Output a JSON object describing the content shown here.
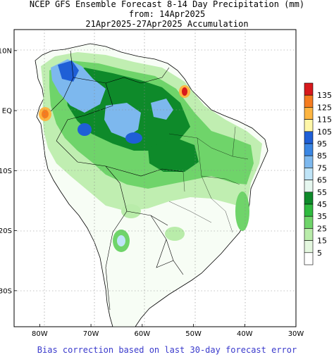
{
  "title": {
    "line1": "NCEP GFS Ensemble Forecast 8-14 Day Precipitation (mm)",
    "line2": "from: 14Apr2025",
    "line3": "21Apr2025-27Apr2025 Accumulation"
  },
  "footer": "Bias correction based on last 30-day forecast error",
  "axes": {
    "lat_labels": [
      "10N",
      "EQ",
      "10S",
      "20S",
      "30S"
    ],
    "lat_values": [
      10,
      0,
      -10,
      -20,
      -30
    ],
    "lon_labels": [
      "80W",
      "70W",
      "60W",
      "50W",
      "40W",
      "30W"
    ],
    "lon_values": [
      -80,
      -70,
      -60,
      -50,
      -40,
      -30
    ],
    "lon_range": [
      -85,
      -30
    ],
    "lat_range": [
      -36,
      13.5
    ],
    "grid": "dotted"
  },
  "legend": {
    "labels": [
      "135",
      "125",
      "115",
      "105",
      "95",
      "85",
      "75",
      "65",
      "55",
      "45",
      "35",
      "25",
      "15",
      "5"
    ],
    "colors": [
      "#d7191c",
      "#f57c1f",
      "#fdb541",
      "#fff7a8",
      "#1f5fd6",
      "#3a86e3",
      "#7db8ee",
      "#bfe4f7",
      "#e6f7ef",
      "#0e8a2a",
      "#2fba3f",
      "#6fd46a",
      "#b9ecaa",
      "#e4f7df",
      "#ffffff"
    ]
  }
}
